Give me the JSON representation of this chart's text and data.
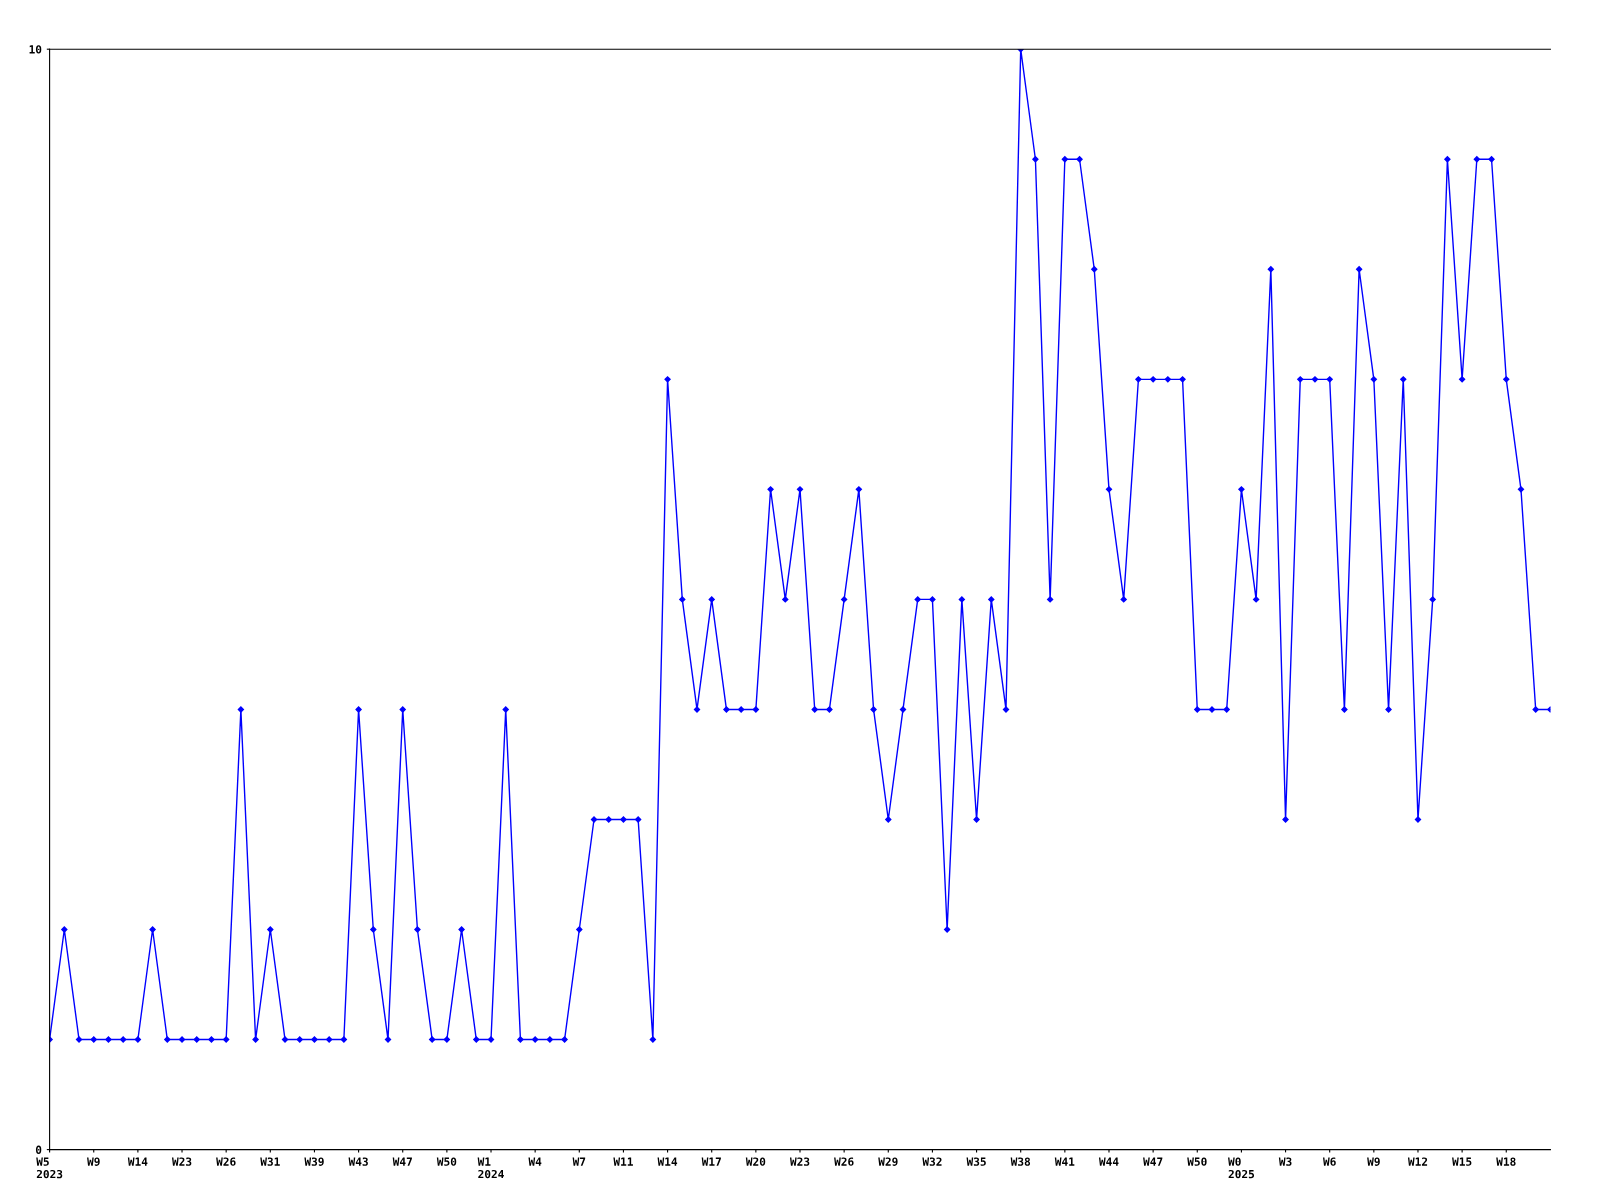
{
  "chart_data": {
    "type": "line",
    "categories": [
      "W5\n2023",
      null,
      null,
      "W9",
      null,
      null,
      "W14",
      null,
      null,
      "W23",
      null,
      null,
      "W26",
      null,
      null,
      "W31",
      null,
      null,
      "W39",
      null,
      null,
      "W43",
      null,
      null,
      "W47",
      null,
      null,
      "W50",
      null,
      null,
      "W1\n2024",
      null,
      null,
      "W4",
      null,
      null,
      "W7",
      null,
      null,
      "W11",
      null,
      null,
      "W14",
      null,
      null,
      "W17",
      null,
      null,
      "W20",
      null,
      null,
      "W23",
      null,
      null,
      "W26",
      null,
      null,
      "W29",
      null,
      null,
      "W32",
      null,
      null,
      "W35",
      null,
      null,
      "W38",
      null,
      null,
      "W41",
      null,
      null,
      "W44",
      null,
      null,
      "W47",
      null,
      null,
      "W50",
      null,
      null,
      "W0\n2025",
      null,
      null,
      "W3",
      null,
      null,
      "W6",
      null,
      null,
      "W9",
      null,
      null,
      "W12",
      null,
      null,
      "W15",
      null,
      null,
      "W18",
      null,
      null,
      null
    ],
    "series": [
      {
        "color": "#0000ff",
        "values": [
          1,
          2,
          1,
          1,
          1,
          1,
          1,
          2,
          1,
          1,
          1,
          1,
          1,
          4,
          1,
          2,
          1,
          1,
          1,
          1,
          1,
          4,
          2,
          1,
          4,
          2,
          1,
          1,
          2,
          1,
          1,
          4,
          1,
          1,
          1,
          1,
          2,
          3,
          3,
          3,
          3,
          1,
          7,
          5,
          4,
          5,
          4,
          4,
          4,
          6,
          5,
          6,
          4,
          4,
          5,
          6,
          4,
          3,
          4,
          5,
          5,
          2,
          5,
          3,
          5,
          4,
          10,
          9,
          5,
          9,
          9,
          8,
          6,
          5,
          7,
          7,
          7,
          7,
          4,
          4,
          4,
          6,
          5,
          8,
          3,
          7,
          7,
          7,
          4,
          8,
          7,
          4,
          7,
          3,
          5,
          9,
          7,
          9,
          9,
          7,
          6,
          4,
          4
        ]
      }
    ],
    "ylim": [
      0,
      10
    ],
    "yticks": [
      0,
      10
    ],
    "grid": false,
    "legend": false,
    "marker": "diamond",
    "line_style": "solid"
  }
}
